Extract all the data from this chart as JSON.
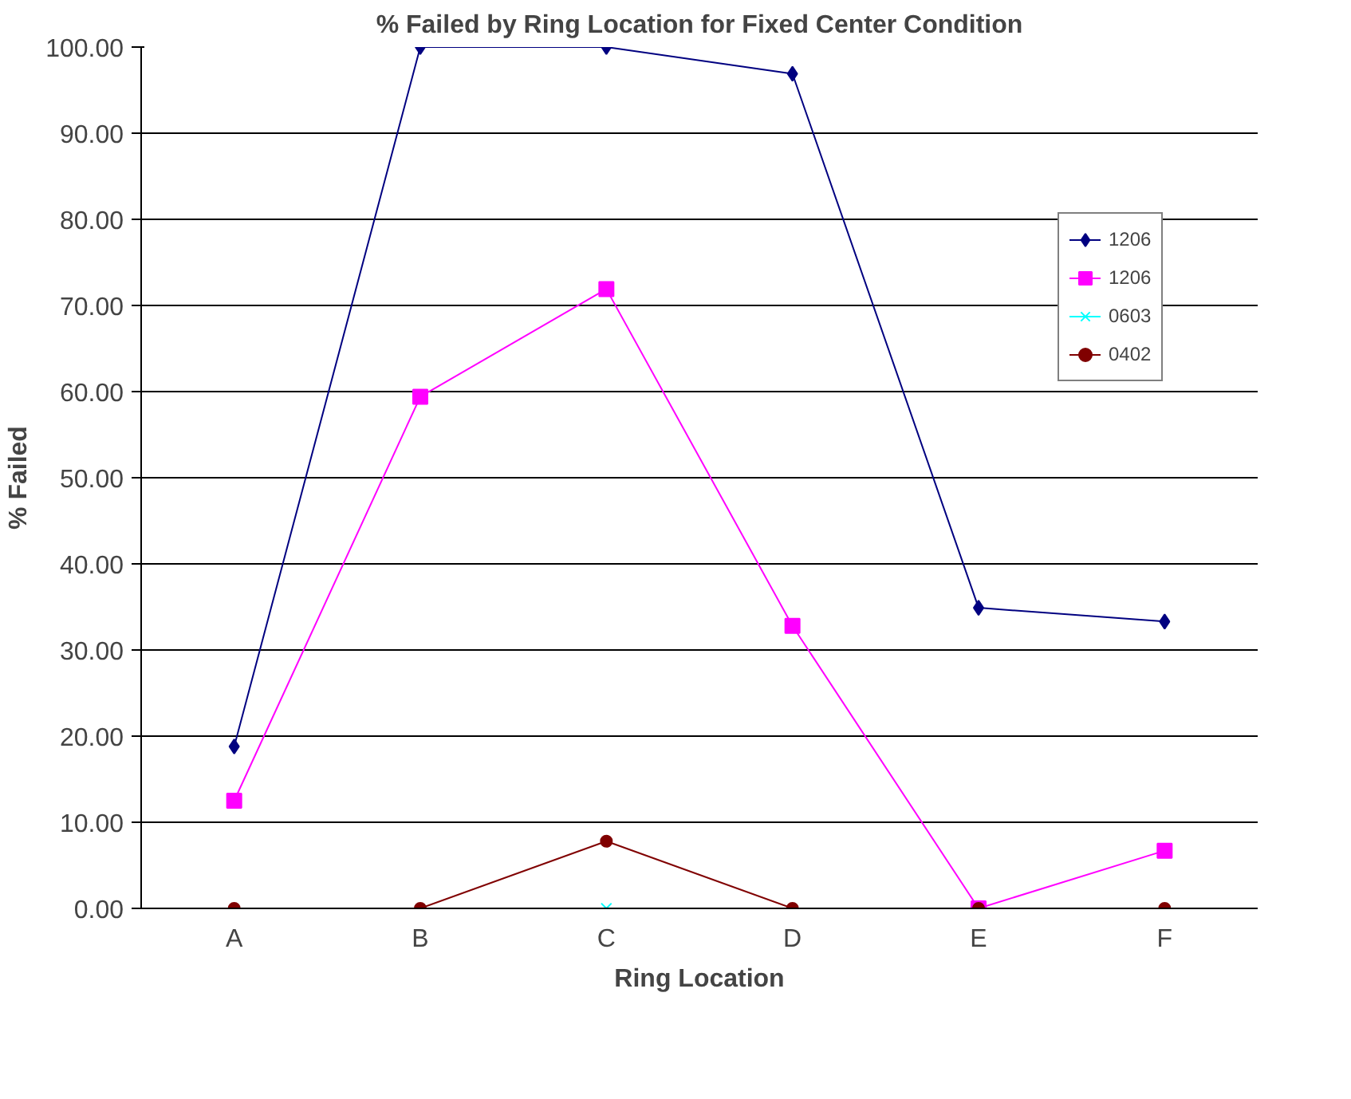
{
  "chart_data": {
    "type": "line",
    "title": "% Failed by Ring Location for Fixed Center Condition",
    "xlabel": "Ring Location",
    "ylabel": "% Failed",
    "categories": [
      "A",
      "B",
      "C",
      "D",
      "E",
      "F"
    ],
    "series": [
      {
        "name": "1206",
        "color": "#000080",
        "marker": "diamond",
        "values": [
          18.8,
          100,
          100,
          96.9,
          34.9,
          33.3
        ]
      },
      {
        "name": "1206",
        "color": "#ff00ff",
        "marker": "square",
        "values": [
          12.5,
          59.4,
          71.9,
          32.8,
          0,
          6.7
        ]
      },
      {
        "name": "0603",
        "color": "#00ffff",
        "marker": "cross",
        "values": [
          null,
          null,
          0,
          null,
          null,
          null
        ]
      },
      {
        "name": "0402",
        "color": "#800000",
        "marker": "circle",
        "values": [
          0,
          0,
          7.8,
          0,
          0,
          0
        ]
      }
    ],
    "ylim": [
      0,
      100
    ],
    "yticks": [
      {
        "value": 0,
        "label": "0.00"
      },
      {
        "value": 10,
        "label": "10.00"
      },
      {
        "value": 20,
        "label": "20.00"
      },
      {
        "value": 30,
        "label": "30.00"
      },
      {
        "value": 40,
        "label": "40.00"
      },
      {
        "value": 50,
        "label": "50.00"
      },
      {
        "value": 60,
        "label": "60.00"
      },
      {
        "value": 70,
        "label": "70.00"
      },
      {
        "value": 80,
        "label": "80.00"
      },
      {
        "value": 90,
        "label": "90.00"
      },
      {
        "value": 100,
        "label": "100.00"
      }
    ],
    "grid": "y",
    "legend": "right"
  }
}
